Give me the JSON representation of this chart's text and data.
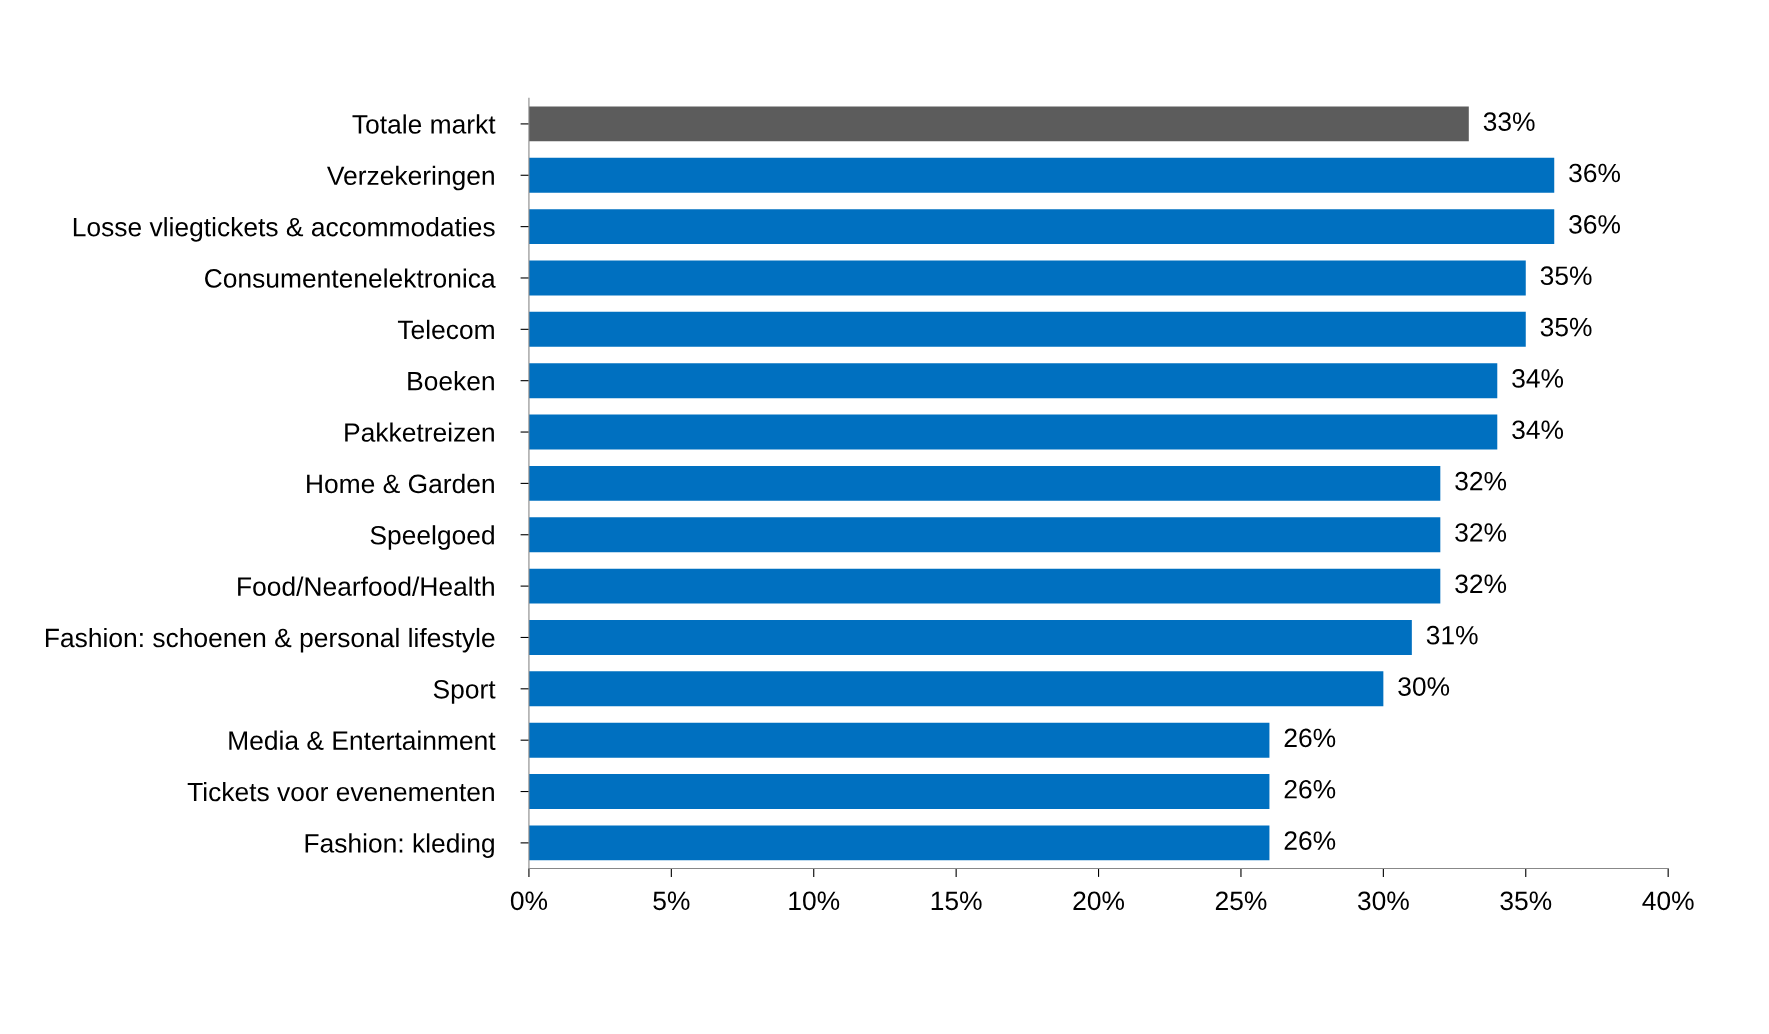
{
  "chart_data": {
    "type": "bar",
    "orientation": "horizontal",
    "categories": [
      "Totale markt",
      "Verzekeringen",
      "Losse vliegtickets & accommodaties",
      "Consumentenelektronica",
      "Telecom",
      "Boeken",
      "Pakketreizen",
      "Home & Garden",
      "Speelgoed",
      "Food/Nearfood/Health",
      "Fashion: schoenen & personal lifestyle",
      "Sport",
      "Media & Entertainment",
      "Tickets voor evenementen",
      "Fashion: kleding"
    ],
    "values": [
      33,
      36,
      36,
      35,
      35,
      34,
      34,
      32,
      32,
      32,
      31,
      30,
      26,
      26,
      26
    ],
    "value_labels": [
      "33%",
      "36%",
      "36%",
      "35%",
      "35%",
      "34%",
      "34%",
      "32%",
      "32%",
      "32%",
      "31%",
      "30%",
      "26%",
      "26%",
      "26%"
    ],
    "colors": [
      "#5c5c5c",
      "#0070c0",
      "#0070c0",
      "#0070c0",
      "#0070c0",
      "#0070c0",
      "#0070c0",
      "#0070c0",
      "#0070c0",
      "#0070c0",
      "#0070c0",
      "#0070c0",
      "#0070c0",
      "#0070c0",
      "#0070c0"
    ],
    "xlim": [
      0,
      40
    ],
    "xticks": [
      {
        "value": 0,
        "label": "0%"
      },
      {
        "value": 5,
        "label": "5%"
      },
      {
        "value": 10,
        "label": "10%"
      },
      {
        "value": 15,
        "label": "15%"
      },
      {
        "value": 20,
        "label": "20%"
      },
      {
        "value": 25,
        "label": "25%"
      },
      {
        "value": 30,
        "label": "30%"
      },
      {
        "value": 35,
        "label": "35%"
      },
      {
        "value": 40,
        "label": "40%"
      }
    ],
    "grid": false,
    "legend": false
  }
}
